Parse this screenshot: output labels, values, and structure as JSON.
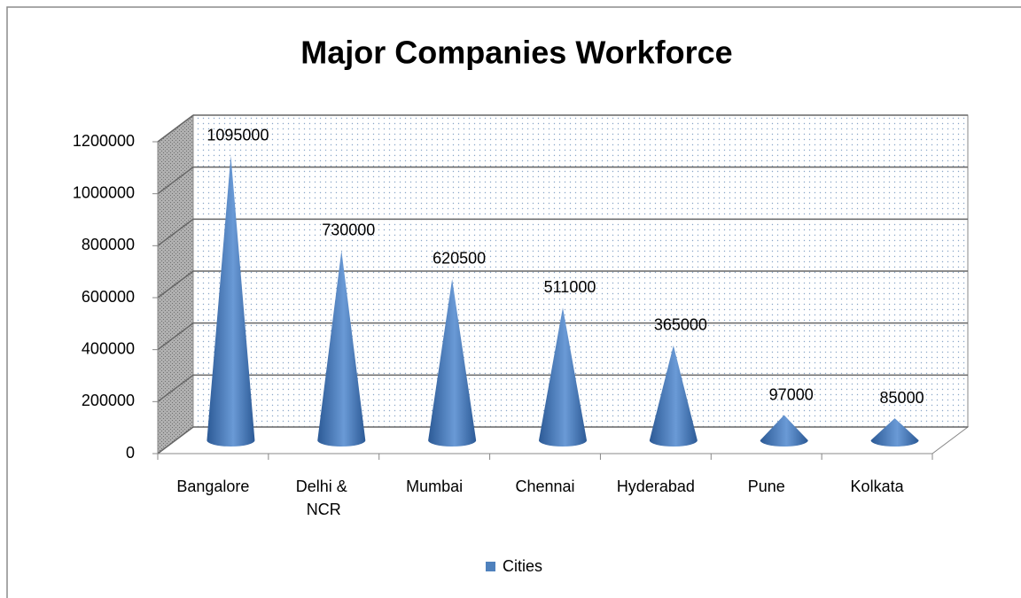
{
  "chart_data": {
    "type": "cone",
    "title": "Major Companies Workforce",
    "categories": [
      "Bangalore",
      "Delhi & NCR",
      "Mumbai",
      "Chennai",
      "Hyderabad",
      "Pune",
      "Kolkata"
    ],
    "series": [
      {
        "name": "Cities",
        "color": "#4f81bd",
        "values": [
          1095000,
          730000,
          620500,
          511000,
          365000,
          97000,
          85000
        ]
      }
    ],
    "ylim": [
      0,
      1200000
    ],
    "yticks": [
      0,
      200000,
      400000,
      600000,
      800000,
      1000000,
      1200000
    ],
    "grid": true,
    "legend": "bottom"
  }
}
